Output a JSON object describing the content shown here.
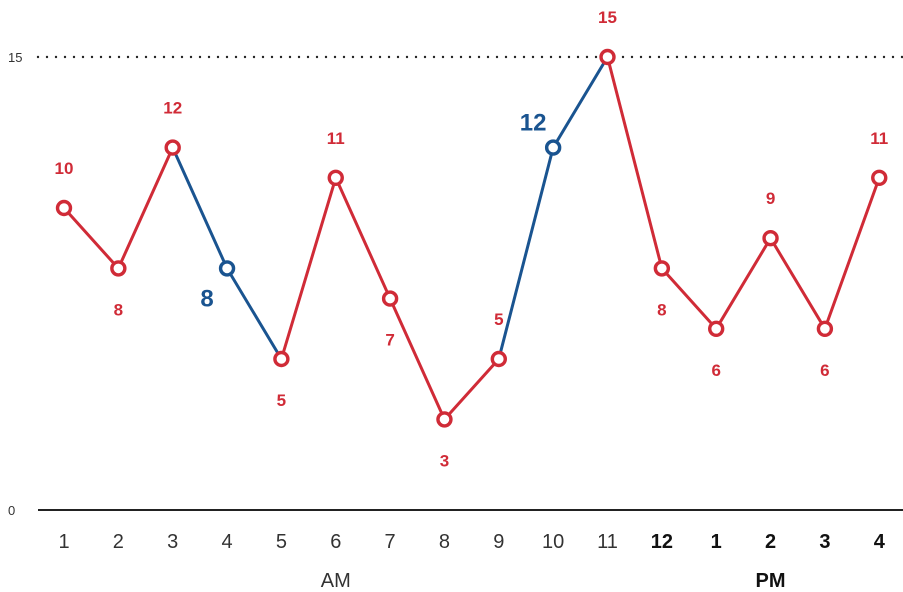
{
  "chart_data": {
    "type": "line",
    "title": "",
    "xlabel": "",
    "ylabel": "",
    "ylim": [
      0,
      15
    ],
    "y_ticks": [
      "0",
      "15"
    ],
    "reference_line": {
      "value": 15,
      "style": "dotted"
    },
    "categories": [
      "1",
      "2",
      "3",
      "4",
      "5",
      "6",
      "7",
      "8",
      "9",
      "10",
      "11",
      "12",
      "1",
      "2",
      "3",
      "4"
    ],
    "bold_categories": [
      false,
      false,
      false,
      false,
      false,
      false,
      false,
      false,
      false,
      false,
      false,
      true,
      true,
      true,
      true,
      true
    ],
    "values": [
      10,
      8,
      12,
      8,
      5,
      11,
      7,
      3,
      5,
      12,
      15,
      8,
      6,
      9,
      6,
      11
    ],
    "value_labels": [
      "10",
      "8",
      "12",
      "8",
      "5",
      "11",
      "7",
      "3",
      "5",
      "12",
      "15",
      "8",
      "6",
      "9",
      "6",
      "11"
    ],
    "highlighted_points": [
      3,
      9
    ],
    "periods": [
      {
        "label": "AM",
        "bold": false,
        "center_index": 5
      },
      {
        "label": "PM",
        "bold": true,
        "center_index": 13
      }
    ],
    "colors": {
      "primary": "#d02b37",
      "highlight": "#1a5490",
      "axis": "#222222",
      "reference": "#222222"
    }
  }
}
